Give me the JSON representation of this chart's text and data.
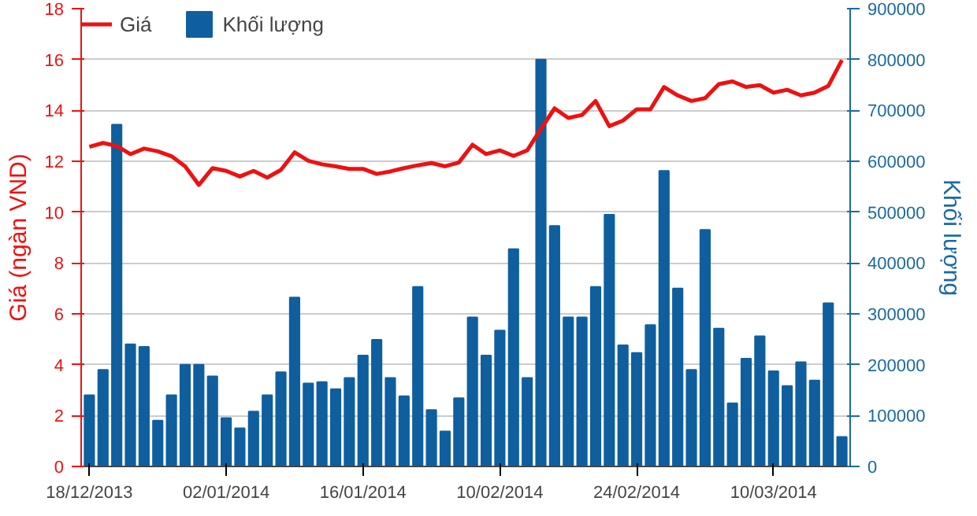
{
  "chart_data": {
    "type": "bar",
    "ylabel": "Giá (ngàn VND)",
    "y2label": "Khối lượng",
    "categories": [
      "18/12/2013",
      null,
      null,
      null,
      null,
      null,
      null,
      null,
      null,
      null,
      "02/01/2014",
      null,
      null,
      null,
      null,
      null,
      null,
      null,
      null,
      null,
      "16/01/2014",
      null,
      null,
      null,
      null,
      null,
      null,
      null,
      null,
      null,
      "10/02/2014",
      null,
      null,
      null,
      null,
      null,
      null,
      null,
      null,
      null,
      "24/02/2014",
      null,
      null,
      null,
      null,
      null,
      null,
      null,
      null,
      null,
      "10/03/2014",
      null,
      null,
      null,
      null,
      null
    ],
    "ylim": [
      0,
      18
    ],
    "yticks": [
      0,
      2,
      4,
      6,
      8,
      10,
      12,
      14,
      16,
      18
    ],
    "y2lim": [
      0,
      900000
    ],
    "y2ticks": [
      0,
      100000,
      200000,
      300000,
      400000,
      500000,
      600000,
      700000,
      800000,
      900000
    ],
    "grid": "y",
    "legend": "top left",
    "series": [
      {
        "name": "Khối lượng",
        "axis": "y2",
        "color": "#0f5f9f",
        "values": [
          140000,
          190000,
          672000,
          240000,
          235000,
          90000,
          140000,
          200000,
          200000,
          177000,
          95000,
          75000,
          108000,
          140000,
          185000,
          332000,
          163000,
          166000,
          152000,
          174000,
          218000,
          249000,
          174000,
          138000,
          353000,
          111000,
          69000,
          134000,
          293000,
          218000,
          267000,
          427000,
          174000,
          800000,
          473000,
          293000,
          293000,
          353000,
          495000,
          238000,
          223000,
          278000,
          581000,
          350000,
          190000,
          465000,
          271000,
          124000,
          212000,
          256000,
          187000,
          158000,
          205000,
          169000,
          321000,
          58000
        ]
      },
      {
        "name": "Giá",
        "type": "line",
        "color": "#ee1111",
        "values": [
          12.57,
          12.72,
          12.6,
          12.28,
          12.5,
          12.39,
          12.2,
          11.8,
          11.07,
          11.73,
          11.62,
          11.4,
          11.62,
          11.36,
          11.66,
          12.35,
          12.02,
          11.88,
          11.8,
          11.7,
          11.7,
          11.5,
          11.6,
          11.73,
          11.84,
          11.93,
          11.8,
          11.95,
          12.65,
          12.28,
          12.43,
          12.21,
          12.43,
          13.27,
          14.08,
          13.7,
          13.82,
          14.37,
          13.38,
          13.6,
          14.04,
          14.04,
          14.92,
          14.59,
          14.37,
          14.48,
          15.03,
          15.14,
          14.92,
          14.99,
          14.7,
          14.81,
          14.59,
          14.7,
          14.96,
          15.98
        ]
      }
    ]
  }
}
